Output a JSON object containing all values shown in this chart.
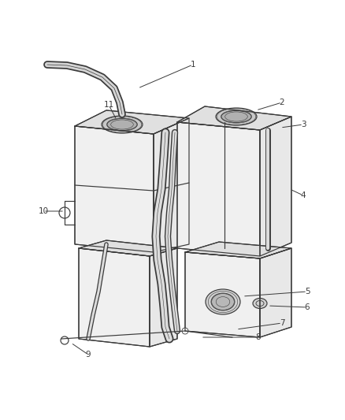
{
  "background_color": "#ffffff",
  "line_color": "#3a3a3a",
  "label_color": "#3a3a3a",
  "label_fontsize": 7.5,
  "figsize": [
    4.38,
    5.33
  ],
  "dpi": 100,
  "img_extent": [
    0,
    438,
    0,
    533
  ]
}
